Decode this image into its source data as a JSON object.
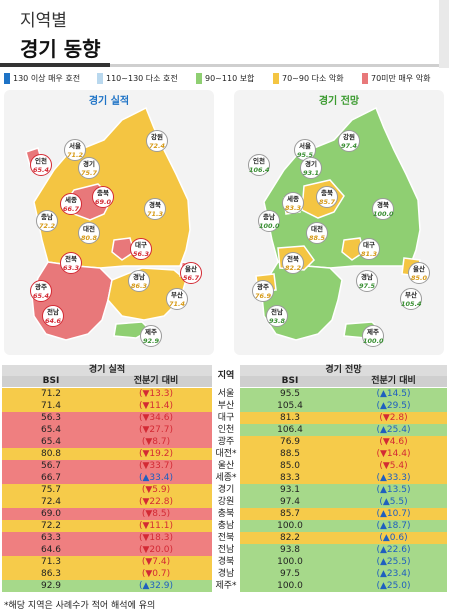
{
  "header": {
    "subtitle": "지역별",
    "title": "경기 동향"
  },
  "legend": [
    {
      "color": "#1e73c6",
      "label": "130 이상 매우 호전"
    },
    {
      "color": "#b9d8ee",
      "label": "110~130 다소 호전"
    },
    {
      "color": "#8fcf72",
      "label": "90~110 보합"
    },
    {
      "color": "#f4c542",
      "label": "70~90 다소 악화"
    },
    {
      "color": "#e8787a",
      "label": "70미만 매우 악화"
    }
  ],
  "maps": {
    "actual": {
      "title": "경기 실적",
      "title_color": "#1e73c6",
      "regions": [
        {
          "name": "서울",
          "value": "71.2",
          "tone": "yel"
        },
        {
          "name": "강원",
          "value": "72.4",
          "tone": "yel"
        },
        {
          "name": "인천",
          "value": "65.4",
          "tone": "red"
        },
        {
          "name": "경기",
          "value": "75.7",
          "tone": "yel"
        },
        {
          "name": "세종",
          "value": "66.7",
          "tone": "red"
        },
        {
          "name": "충북",
          "value": "69.0",
          "tone": "red"
        },
        {
          "name": "충남",
          "value": "72.2",
          "tone": "yel"
        },
        {
          "name": "대전",
          "value": "80.8",
          "tone": "yel"
        },
        {
          "name": "경북",
          "value": "71.3",
          "tone": "yel"
        },
        {
          "name": "대구",
          "value": "56.3",
          "tone": "red"
        },
        {
          "name": "전북",
          "value": "63.3",
          "tone": "red"
        },
        {
          "name": "울산",
          "value": "56.7",
          "tone": "red"
        },
        {
          "name": "경남",
          "value": "86.3",
          "tone": "yel"
        },
        {
          "name": "광주",
          "value": "65.4",
          "tone": "red"
        },
        {
          "name": "부산",
          "value": "71.4",
          "tone": "yel"
        },
        {
          "name": "전남",
          "value": "64.6",
          "tone": "red"
        },
        {
          "name": "제주",
          "value": "92.9",
          "tone": "grn"
        }
      ]
    },
    "forecast": {
      "title": "경기 전망",
      "title_color": "#3a9a2e",
      "regions": [
        {
          "name": "서울",
          "value": "95.5",
          "tone": "grn"
        },
        {
          "name": "강원",
          "value": "97.4",
          "tone": "grn"
        },
        {
          "name": "인천",
          "value": "106.4",
          "tone": "grn"
        },
        {
          "name": "경기",
          "value": "93.1",
          "tone": "grn"
        },
        {
          "name": "세종",
          "value": "83.3",
          "tone": "yel"
        },
        {
          "name": "충북",
          "value": "85.7",
          "tone": "yel"
        },
        {
          "name": "충남",
          "value": "100.0",
          "tone": "grn"
        },
        {
          "name": "대전",
          "value": "88.5",
          "tone": "yel"
        },
        {
          "name": "경북",
          "value": "100.0",
          "tone": "grn"
        },
        {
          "name": "대구",
          "value": "81.3",
          "tone": "yel"
        },
        {
          "name": "전북",
          "value": "82.2",
          "tone": "yel"
        },
        {
          "name": "울산",
          "value": "85.0",
          "tone": "yel"
        },
        {
          "name": "경남",
          "value": "97.5",
          "tone": "grn"
        },
        {
          "name": "광주",
          "value": "76.9",
          "tone": "yel"
        },
        {
          "name": "부산",
          "value": "105.4",
          "tone": "grn"
        },
        {
          "name": "전남",
          "value": "93.8",
          "tone": "grn"
        },
        {
          "name": "제주",
          "value": "100.0",
          "tone": "grn"
        }
      ]
    }
  },
  "table": {
    "group_actual": "경기 실적",
    "group_region": "지역",
    "group_forecast": "경기 전망",
    "col_bsi": "BSI",
    "col_change": "전분기 대비",
    "colors": {
      "red": "#ef7f80",
      "yellow": "#f6cb4a",
      "green": "#a6d98a"
    },
    "rows": [
      {
        "region": "서울",
        "a_bsi": "71.2",
        "a_chg": "(▼13.3)",
        "a_dir": "dn",
        "a_tone": "yellow",
        "f_bsi": "95.5",
        "f_chg": "(▲14.5)",
        "f_dir": "up",
        "f_tone": "green"
      },
      {
        "region": "부산",
        "a_bsi": "71.4",
        "a_chg": "(▼11.4)",
        "a_dir": "dn",
        "a_tone": "yellow",
        "f_bsi": "105.4",
        "f_chg": "(▲29.5)",
        "f_dir": "up",
        "f_tone": "green"
      },
      {
        "region": "대구",
        "a_bsi": "56.3",
        "a_chg": "(▼34.6)",
        "a_dir": "dn",
        "a_tone": "red",
        "f_bsi": "81.3",
        "f_chg": "(▼2.8)",
        "f_dir": "dn",
        "f_tone": "yellow"
      },
      {
        "region": "인천",
        "a_bsi": "65.4",
        "a_chg": "(▼27.7)",
        "a_dir": "dn",
        "a_tone": "red",
        "f_bsi": "106.4",
        "f_chg": "(▲25.4)",
        "f_dir": "up",
        "f_tone": "green"
      },
      {
        "region": "광주",
        "a_bsi": "65.4",
        "a_chg": "(▼8.7)",
        "a_dir": "dn",
        "a_tone": "red",
        "f_bsi": "76.9",
        "f_chg": "(▼4.6)",
        "f_dir": "dn",
        "f_tone": "yellow"
      },
      {
        "region": "대전*",
        "a_bsi": "80.8",
        "a_chg": "(▼19.2)",
        "a_dir": "dn",
        "a_tone": "yellow",
        "f_bsi": "88.5",
        "f_chg": "(▼14.4)",
        "f_dir": "dn",
        "f_tone": "yellow"
      },
      {
        "region": "울산",
        "a_bsi": "56.7",
        "a_chg": "(▼33.7)",
        "a_dir": "dn",
        "a_tone": "red",
        "f_bsi": "85.0",
        "f_chg": "(▼5.4)",
        "f_dir": "dn",
        "f_tone": "yellow"
      },
      {
        "region": "세종*",
        "a_bsi": "66.7",
        "a_chg": "(▲33.4)",
        "a_dir": "up",
        "a_tone": "red",
        "f_bsi": "83.3",
        "f_chg": "(▲33.3)",
        "f_dir": "up",
        "f_tone": "yellow"
      },
      {
        "region": "경기",
        "a_bsi": "75.7",
        "a_chg": "(▼5.9)",
        "a_dir": "dn",
        "a_tone": "yellow",
        "f_bsi": "93.1",
        "f_chg": "(▲13.5)",
        "f_dir": "up",
        "f_tone": "green"
      },
      {
        "region": "강원",
        "a_bsi": "72.4",
        "a_chg": "(▼22.8)",
        "a_dir": "dn",
        "a_tone": "yellow",
        "f_bsi": "97.4",
        "f_chg": "(▲5.5)",
        "f_dir": "up",
        "f_tone": "green"
      },
      {
        "region": "충북",
        "a_bsi": "69.0",
        "a_chg": "(▼8.5)",
        "a_dir": "dn",
        "a_tone": "red",
        "f_bsi": "85.7",
        "f_chg": "(▲10.7)",
        "f_dir": "up",
        "f_tone": "yellow"
      },
      {
        "region": "충남",
        "a_bsi": "72.2",
        "a_chg": "(▼11.1)",
        "a_dir": "dn",
        "a_tone": "yellow",
        "f_bsi": "100.0",
        "f_chg": "(▲18.7)",
        "f_dir": "up",
        "f_tone": "green"
      },
      {
        "region": "전북",
        "a_bsi": "63.3",
        "a_chg": "(▼18.3)",
        "a_dir": "dn",
        "a_tone": "red",
        "f_bsi": "82.2",
        "f_chg": "(▲0.6)",
        "f_dir": "up",
        "f_tone": "yellow"
      },
      {
        "region": "전남",
        "a_bsi": "64.6",
        "a_chg": "(▼20.0)",
        "a_dir": "dn",
        "a_tone": "red",
        "f_bsi": "93.8",
        "f_chg": "(▲22.6)",
        "f_dir": "up",
        "f_tone": "green"
      },
      {
        "region": "경북",
        "a_bsi": "71.3",
        "a_chg": "(▼7.4)",
        "a_dir": "dn",
        "a_tone": "yellow",
        "f_bsi": "100.0",
        "f_chg": "(▲25.5)",
        "f_dir": "up",
        "f_tone": "green"
      },
      {
        "region": "경남",
        "a_bsi": "86.3",
        "a_chg": "(▼0.7)",
        "a_dir": "dn",
        "a_tone": "yellow",
        "f_bsi": "97.5",
        "f_chg": "(▲23.4)",
        "f_dir": "up",
        "f_tone": "green"
      },
      {
        "region": "제주*",
        "a_bsi": "92.9",
        "a_chg": "(▲32.9)",
        "a_dir": "up",
        "a_tone": "green",
        "f_bsi": "100.0",
        "f_chg": "(▲25.0)",
        "f_dir": "up",
        "f_tone": "green"
      }
    ]
  },
  "footnote": "*해당 지역은 사례수가 적어 해석에 유의"
}
